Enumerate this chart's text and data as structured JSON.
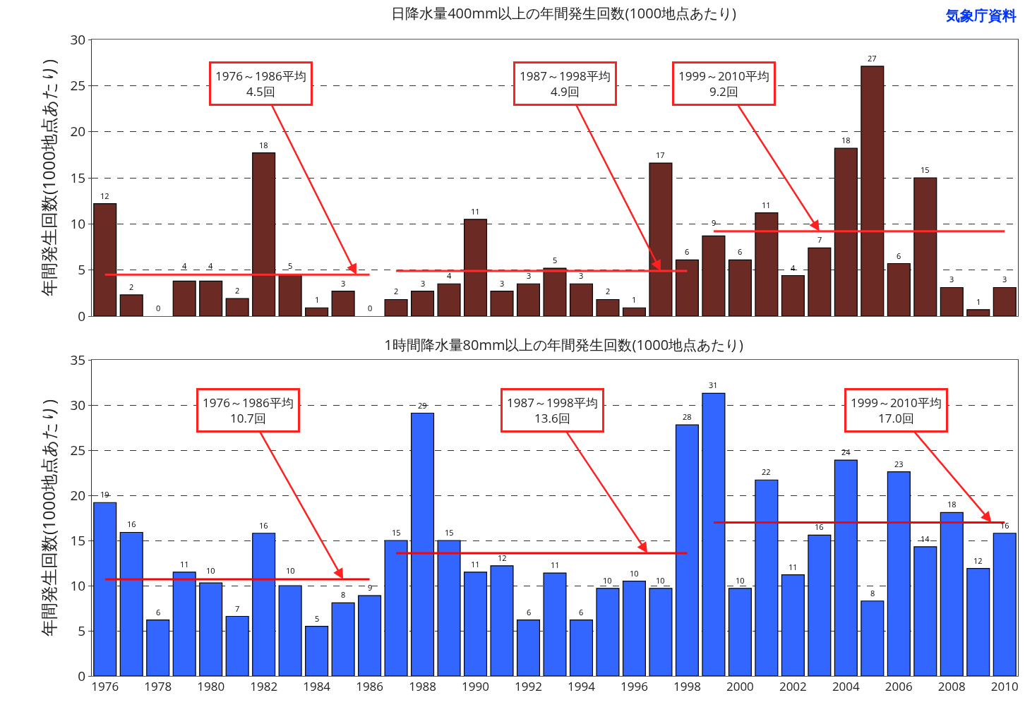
{
  "chart_data": [
    {
      "type": "bar",
      "title": "日降水量400mm以上の年間発生回数(1000地点あたり)",
      "ylabel": "年間発生回数(1000地点あたり)",
      "x": [
        1976,
        1977,
        1978,
        1979,
        1980,
        1981,
        1982,
        1983,
        1984,
        1985,
        1986,
        1987,
        1988,
        1989,
        1990,
        1991,
        1992,
        1993,
        1994,
        1995,
        1996,
        1997,
        1998,
        1999,
        2000,
        2001,
        2002,
        2003,
        2004,
        2005,
        2006,
        2007,
        2008,
        2009,
        2010
      ],
      "xlim": [
        1975.5,
        2010.5
      ],
      "xticks": [
        1976,
        1978,
        1980,
        1982,
        1984,
        1986,
        1988,
        1990,
        1992,
        1994,
        1996,
        1998,
        2000,
        2002,
        2004,
        2006,
        2008,
        2010
      ],
      "ylim": [
        0,
        30
      ],
      "yticks": [
        0,
        5,
        10,
        15,
        20,
        25,
        30
      ],
      "grid": "y",
      "tick_labels": "y",
      "series": [
        {
          "color": "#6b2a24",
          "values": [
            12.2,
            2.3,
            0,
            3.8,
            3.8,
            1.9,
            17.7,
            4.5,
            0.9,
            2.7,
            0,
            1.8,
            2.7,
            3.5,
            10.5,
            2.7,
            3.5,
            5.2,
            3.5,
            1.8,
            0.9,
            16.6,
            6.1,
            8.7,
            6.1,
            11.2,
            4.4,
            7.4,
            18.2,
            27.1,
            5.7,
            15.0,
            3.1,
            0.7,
            3.1
          ],
          "value_labels": [
            "12",
            "2",
            "0",
            "4",
            "4",
            "2",
            "18",
            "5",
            "1",
            "3",
            "0",
            "2",
            "3",
            "4",
            "11",
            "3",
            "3",
            "5",
            "3",
            "2",
            "1",
            "17",
            "6",
            "9",
            "6",
            "11",
            "4",
            "7",
            "18",
            "27",
            "6",
            "15",
            "3",
            "1",
            "3"
          ]
        },
        {
          "type": "line",
          "color": "#ff2a2a",
          "x": [
            1976,
            1986
          ],
          "values": [
            4.5,
            4.5
          ]
        },
        {
          "type": "line",
          "color": "#ff2a2a",
          "x": [
            1987,
            1998
          ],
          "values": [
            4.9,
            4.9
          ]
        },
        {
          "type": "line",
          "color": "#ff2a2a",
          "x": [
            1999,
            2010
          ],
          "values": [
            9.2,
            9.2
          ]
        }
      ],
      "annotations": [
        "気象庁資料",
        {
          "text": "1976～1986平均\n4.5回",
          "x": 1985.5,
          "y": 4.5
        },
        {
          "text": "1987～1998平均\n4.9回",
          "x": 1997,
          "y": 4.9
        },
        {
          "text": "1999～2010平均\n9.2回",
          "x": 2003,
          "y": 9.2
        }
      ]
    },
    {
      "type": "bar",
      "title": "1時間降水量80mm以上の年間発生回数(1000地点あたり)",
      "ylabel": "年間発生回数(1000地点あたり)",
      "x": [
        1976,
        1977,
        1978,
        1979,
        1980,
        1981,
        1982,
        1983,
        1984,
        1985,
        1986,
        1987,
        1988,
        1989,
        1990,
        1991,
        1992,
        1993,
        1994,
        1995,
        1996,
        1997,
        1998,
        1999,
        2000,
        2001,
        2002,
        2003,
        2004,
        2005,
        2006,
        2007,
        2008,
        2009,
        2010
      ],
      "xlim": [
        1975.5,
        2010.5
      ],
      "xticks": [
        1976,
        1978,
        1980,
        1982,
        1984,
        1986,
        1988,
        1990,
        1992,
        1994,
        1996,
        1998,
        2000,
        2002,
        2004,
        2006,
        2008,
        2010
      ],
      "ylim": [
        0,
        35
      ],
      "yticks": [
        0,
        5,
        10,
        15,
        20,
        25,
        30,
        35
      ],
      "grid": "y",
      "series": [
        {
          "color": "#3366ff",
          "values": [
            19.2,
            15.9,
            6.2,
            11.5,
            10.3,
            6.6,
            15.8,
            10.0,
            5.5,
            8.1,
            8.9,
            15.0,
            29.1,
            15.0,
            11.5,
            12.2,
            6.2,
            11.4,
            6.2,
            9.7,
            10.5,
            9.7,
            27.8,
            31.3,
            9.7,
            21.7,
            11.2,
            15.6,
            23.9,
            8.3,
            22.6,
            14.3,
            18.1,
            11.9,
            15.8
          ],
          "value_labels": [
            "19",
            "16",
            "6",
            "11",
            "10",
            "7",
            "16",
            "10",
            "5",
            "8",
            "9",
            "15",
            "29",
            "15",
            "11",
            "12",
            "6",
            "11",
            "6",
            "10",
            "10",
            "10",
            "28",
            "31",
            "10",
            "22",
            "11",
            "16",
            "24",
            "8",
            "23",
            "14",
            "18",
            "12",
            "16"
          ]
        },
        {
          "type": "line",
          "color": "#ff0000",
          "x": [
            1976,
            1986
          ],
          "values": [
            10.7,
            10.7
          ]
        },
        {
          "type": "line",
          "color": "#ff0000",
          "x": [
            1987,
            1998
          ],
          "values": [
            13.6,
            13.6
          ]
        },
        {
          "type": "line",
          "color": "#ff0000",
          "x": [
            1999,
            2010
          ],
          "values": [
            17.0,
            17.0
          ]
        }
      ],
      "annotations": [
        {
          "text": "1976～1986平均\n10.7回",
          "x": 1985,
          "y": 10.7
        },
        {
          "text": "1987～1998平均\n13.6回",
          "x": 1996.5,
          "y": 13.6
        },
        {
          "text": "1999～2010平均\n17.0回",
          "x": 2009.5,
          "y": 17.0
        }
      ]
    }
  ]
}
